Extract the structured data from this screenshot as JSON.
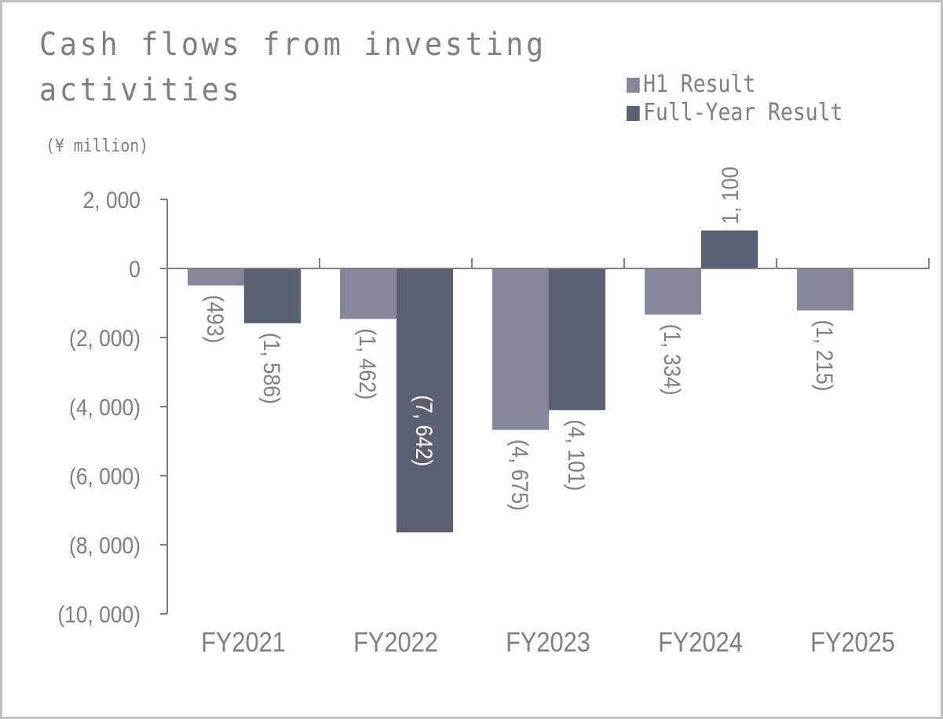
{
  "title_line1": "Cash flows from investing",
  "title_line2": "activities",
  "unit_label": "(¥ million)",
  "legend": [
    {
      "label": "H1 Result",
      "color": "#84879a"
    },
    {
      "label": "Full-Year Result",
      "color": "#5a5f72"
    }
  ],
  "chart_data": {
    "type": "bar",
    "title": "Cash flows from investing activities",
    "ylabel": "(¥ million)",
    "xlabel": "",
    "categories": [
      "FY2021",
      "FY2022",
      "FY2023",
      "FY2024",
      "FY2025"
    ],
    "series": [
      {
        "name": "H1 Result",
        "color": "#84879a",
        "values": [
          -493,
          -1462,
          -4675,
          -1334,
          -1215
        ],
        "labels": [
          "(493)",
          "(1, 462)",
          "(4, 675)",
          "(1, 334)",
          "(1, 215)"
        ]
      },
      {
        "name": "Full-Year Result",
        "color": "#5a5f72",
        "values": [
          -1586,
          -7642,
          -4101,
          1100,
          null
        ],
        "labels": [
          "(1, 586)",
          "(7, 642)",
          "(4, 101)",
          "1, 100",
          ""
        ]
      }
    ],
    "ylim": [
      -10000,
      2000
    ],
    "yticks": [
      2000,
      0,
      -2000,
      -4000,
      -6000,
      -8000,
      -10000
    ],
    "ytick_labels": [
      "2, 000",
      "0",
      "(2, 000)",
      "(4, 000)",
      "(6, 000)",
      "(8, 000)",
      "(10, 000)"
    ],
    "grid": false,
    "legend_position": "top-right"
  }
}
